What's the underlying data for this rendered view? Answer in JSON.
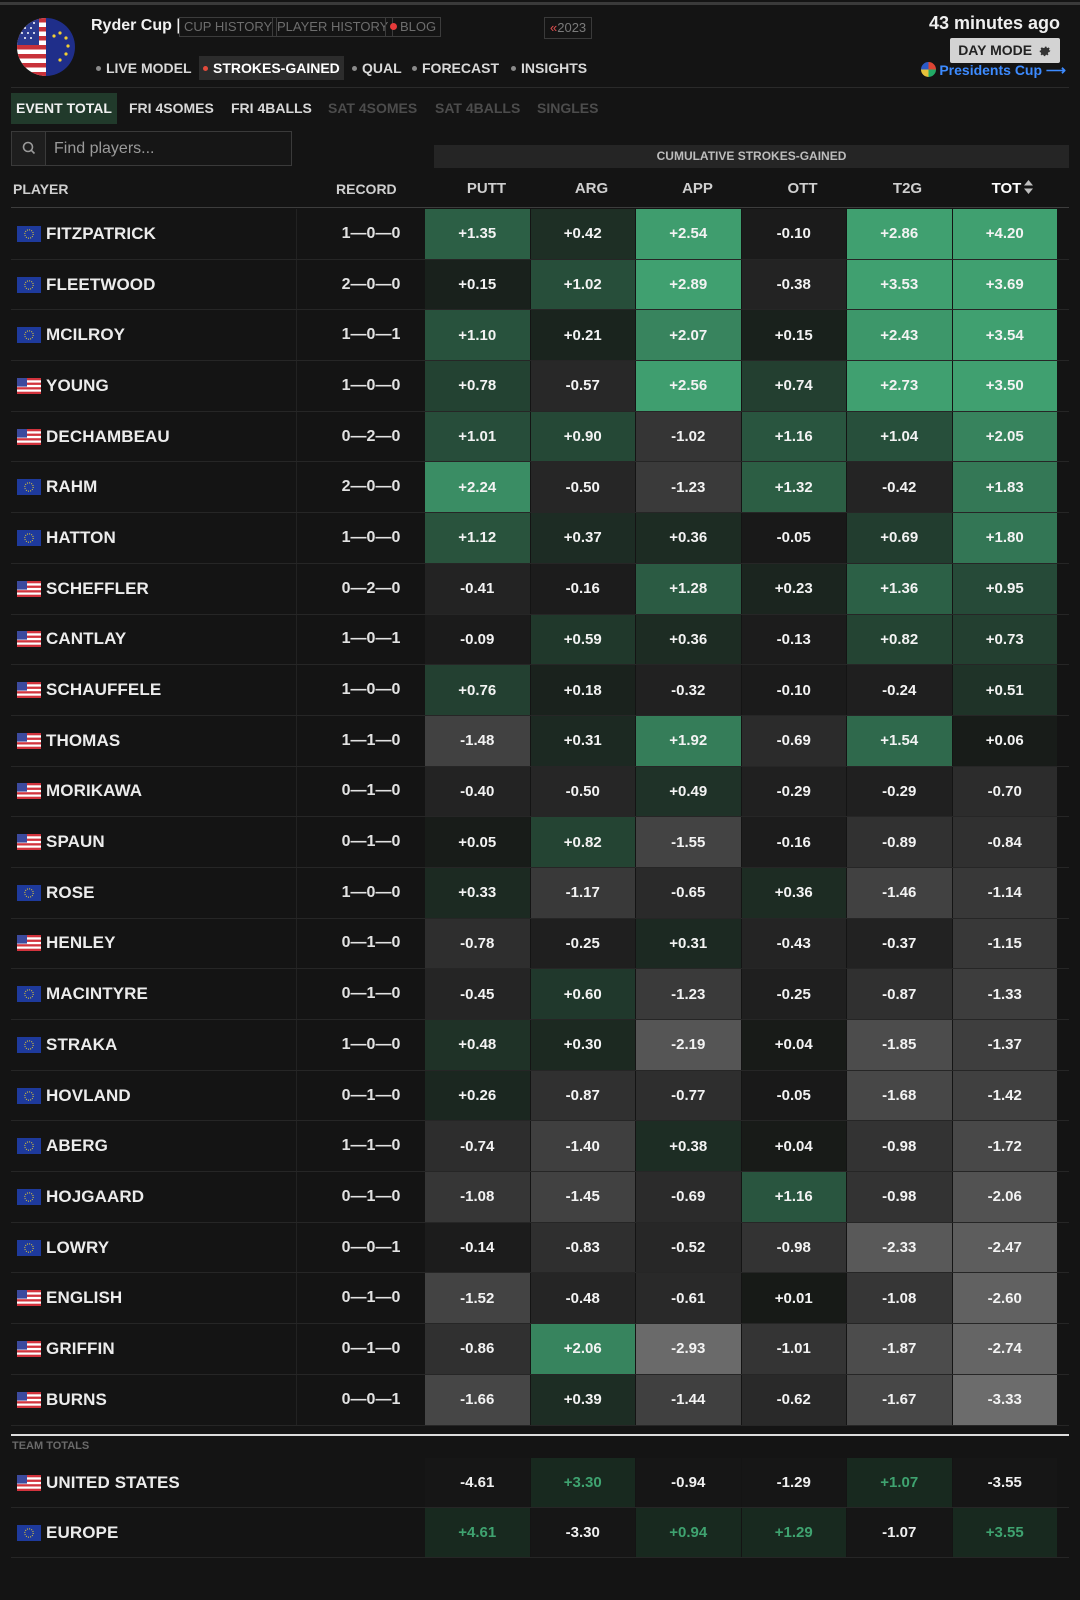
{
  "header": {
    "title": "Ryder Cup |",
    "links": [
      "CUP HISTORY",
      "PLAYER HISTORY",
      "BLOG"
    ],
    "year_arrows": "«",
    "year": "2023",
    "nav": [
      "LIVE MODEL",
      "STROKES-GAINED",
      "QUAL",
      "FORECAST",
      "INSIGHTS"
    ],
    "active_nav": "STROKES-GAINED",
    "updated": "43 minutes ago",
    "day_mode": "DAY MODE",
    "presidents_cup": "Presidents Cup ⟶"
  },
  "tabs": [
    {
      "label": "EVENT TOTAL",
      "state": "active"
    },
    {
      "label": "FRI 4SOMES",
      "state": "on"
    },
    {
      "label": "FRI 4BALLS",
      "state": "on"
    },
    {
      "label": "SAT 4SOMES",
      "state": "off"
    },
    {
      "label": "SAT 4BALLS",
      "state": "off"
    },
    {
      "label": "SINGLES",
      "state": "off"
    }
  ],
  "search": {
    "placeholder": "Find players..."
  },
  "table": {
    "group_header": "CUMULATIVE STROKES-GAINED",
    "col_player": "PLAYER",
    "col_record": "RECORD",
    "stat_columns": [
      "PUTT",
      "ARG",
      "APP",
      "OTT",
      "T2G",
      "TOT"
    ],
    "sorted_column": "TOT",
    "rows": [
      {
        "team": "EU",
        "name": "FITZPATRICK",
        "record": "1—0—0",
        "stats": [
          "+1.35",
          "+0.42",
          "+2.54",
          "-0.10",
          "+2.86",
          "+4.20"
        ]
      },
      {
        "team": "EU",
        "name": "FLEETWOOD",
        "record": "2—0—0",
        "stats": [
          "+0.15",
          "+1.02",
          "+2.89",
          "-0.38",
          "+3.53",
          "+3.69"
        ]
      },
      {
        "team": "EU",
        "name": "MCILROY",
        "record": "1—0—1",
        "stats": [
          "+1.10",
          "+0.21",
          "+2.07",
          "+0.15",
          "+2.43",
          "+3.54"
        ]
      },
      {
        "team": "US",
        "name": "YOUNG",
        "record": "1—0—0",
        "stats": [
          "+0.78",
          "-0.57",
          "+2.56",
          "+0.74",
          "+2.73",
          "+3.50"
        ]
      },
      {
        "team": "US",
        "name": "DECHAMBEAU",
        "record": "0—2—0",
        "stats": [
          "+1.01",
          "+0.90",
          "-1.02",
          "+1.16",
          "+1.04",
          "+2.05"
        ]
      },
      {
        "team": "EU",
        "name": "RAHM",
        "record": "2—0—0",
        "stats": [
          "+2.24",
          "-0.50",
          "-1.23",
          "+1.32",
          "-0.42",
          "+1.83"
        ]
      },
      {
        "team": "EU",
        "name": "HATTON",
        "record": "1—0—0",
        "stats": [
          "+1.12",
          "+0.37",
          "+0.36",
          "-0.05",
          "+0.69",
          "+1.80"
        ]
      },
      {
        "team": "US",
        "name": "SCHEFFLER",
        "record": "0—2—0",
        "stats": [
          "-0.41",
          "-0.16",
          "+1.28",
          "+0.23",
          "+1.36",
          "+0.95"
        ]
      },
      {
        "team": "US",
        "name": "CANTLAY",
        "record": "1—0—1",
        "stats": [
          "-0.09",
          "+0.59",
          "+0.36",
          "-0.13",
          "+0.82",
          "+0.73"
        ]
      },
      {
        "team": "US",
        "name": "SCHAUFFELE",
        "record": "1—0—0",
        "stats": [
          "+0.76",
          "+0.18",
          "-0.32",
          "-0.10",
          "-0.24",
          "+0.51"
        ]
      },
      {
        "team": "US",
        "name": "THOMAS",
        "record": "1—1—0",
        "stats": [
          "-1.48",
          "+0.31",
          "+1.92",
          "-0.69",
          "+1.54",
          "+0.06"
        ]
      },
      {
        "team": "US",
        "name": "MORIKAWA",
        "record": "0—1—0",
        "stats": [
          "-0.40",
          "-0.50",
          "+0.49",
          "-0.29",
          "-0.29",
          "-0.70"
        ]
      },
      {
        "team": "US",
        "name": "SPAUN",
        "record": "0—1—0",
        "stats": [
          "+0.05",
          "+0.82",
          "-1.55",
          "-0.16",
          "-0.89",
          "-0.84"
        ]
      },
      {
        "team": "EU",
        "name": "ROSE",
        "record": "1—0—0",
        "stats": [
          "+0.33",
          "-1.17",
          "-0.65",
          "+0.36",
          "-1.46",
          "-1.14"
        ]
      },
      {
        "team": "US",
        "name": "HENLEY",
        "record": "0—1—0",
        "stats": [
          "-0.78",
          "-0.25",
          "+0.31",
          "-0.43",
          "-0.37",
          "-1.15"
        ]
      },
      {
        "team": "EU",
        "name": "MACINTYRE",
        "record": "0—1—0",
        "stats": [
          "-0.45",
          "+0.60",
          "-1.23",
          "-0.25",
          "-0.87",
          "-1.33"
        ]
      },
      {
        "team": "EU",
        "name": "STRAKA",
        "record": "1—0—0",
        "stats": [
          "+0.48",
          "+0.30",
          "-2.19",
          "+0.04",
          "-1.85",
          "-1.37"
        ]
      },
      {
        "team": "EU",
        "name": "HOVLAND",
        "record": "0—1—0",
        "stats": [
          "+0.26",
          "-0.87",
          "-0.77",
          "-0.05",
          "-1.68",
          "-1.42"
        ]
      },
      {
        "team": "EU",
        "name": "ABERG",
        "record": "1—1—0",
        "stats": [
          "-0.74",
          "-1.40",
          "+0.38",
          "+0.04",
          "-0.98",
          "-1.72"
        ]
      },
      {
        "team": "EU",
        "name": "HOJGAARD",
        "record": "0—1—0",
        "stats": [
          "-1.08",
          "-1.45",
          "-0.69",
          "+1.16",
          "-0.98",
          "-2.06"
        ]
      },
      {
        "team": "EU",
        "name": "LOWRY",
        "record": "0—0—1",
        "stats": [
          "-0.14",
          "-0.83",
          "-0.52",
          "-0.98",
          "-2.33",
          "-2.47"
        ]
      },
      {
        "team": "US",
        "name": "ENGLISH",
        "record": "0—1—0",
        "stats": [
          "-1.52",
          "-0.48",
          "-0.61",
          "+0.01",
          "-1.08",
          "-2.60"
        ]
      },
      {
        "team": "US",
        "name": "GRIFFIN",
        "record": "0—1—0",
        "stats": [
          "-0.86",
          "+2.06",
          "-2.93",
          "-1.01",
          "-1.87",
          "-2.74"
        ]
      },
      {
        "team": "US",
        "name": "BURNS",
        "record": "0—0—1",
        "stats": [
          "-1.66",
          "+0.39",
          "-1.44",
          "-0.62",
          "-1.67",
          "-3.33"
        ]
      }
    ],
    "team_totals_label": "TEAM TOTALS",
    "team_totals": [
      {
        "team": "US",
        "name": "UNITED STATES",
        "stats": [
          "-4.61",
          "+3.30",
          "-0.94",
          "-1.29",
          "+1.07",
          "-3.55"
        ]
      },
      {
        "team": "EU",
        "name": "EUROPE",
        "stats": [
          "+4.61",
          "-3.30",
          "+0.94",
          "+1.29",
          "-1.07",
          "+3.55"
        ]
      }
    ]
  },
  "colors": {
    "positive_team_total_text": "#3fa370",
    "blog_dot": "#e53b3b",
    "active_nav_dot": "#e24a3b",
    "presidents_link": "#3d8bff"
  }
}
